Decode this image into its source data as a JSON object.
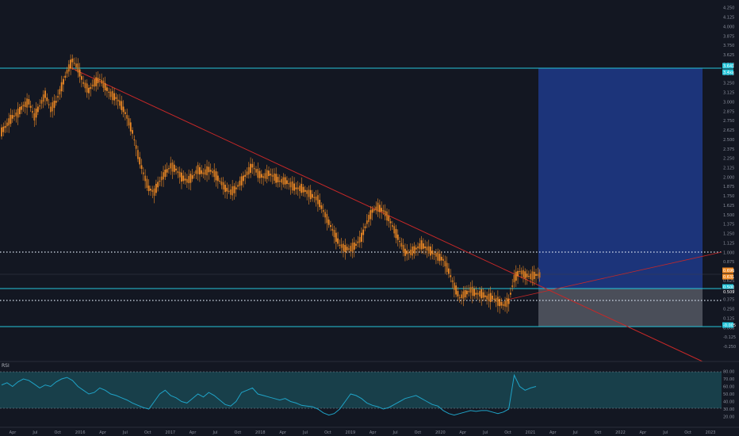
{
  "chart_data": {
    "type": "candlestick",
    "title": "",
    "xlabel": "",
    "ylabel": "",
    "ylim": [
      -0.25,
      4.3
    ],
    "grid": false,
    "background": "#131722",
    "colors": {
      "candle_up": "#f08a24",
      "candle_down": "#f08a24",
      "horizontal_line": "#26c6da",
      "dotted_level": "#d8e2f0",
      "trend_line": "#c62828",
      "long_target_zone": "#1e3a8a",
      "long_stop_zone": "#787b86",
      "rsi_line": "#1fa3c7",
      "rsi_band": "#1a4a55"
    },
    "price_axis_ticks": [
      "4.250",
      "4.125",
      "4.000",
      "3.875",
      "3.750",
      "3.625",
      "3.500",
      "3.375",
      "3.250",
      "3.125",
      "3.000",
      "2.875",
      "2.750",
      "2.625",
      "2.500",
      "2.375",
      "2.250",
      "2.125",
      "2.000",
      "1.875",
      "1.750",
      "1.625",
      "1.500",
      "1.375",
      "1.250",
      "1.125",
      "1.000",
      "0.875",
      "0.750",
      "0.625",
      "0.500",
      "0.375",
      "0.250",
      "0.125",
      "0.000",
      "-0.125",
      "-0.250"
    ],
    "time_axis_labels": [
      "Apr",
      "Jul",
      "Oct",
      "2016",
      "Apr",
      "Jul",
      "Oct",
      "2017",
      "Apr",
      "Jul",
      "Oct",
      "2018",
      "Apr",
      "Jul",
      "Oct",
      "2019",
      "Apr",
      "Jul",
      "Oct",
      "2020",
      "Apr",
      "Jul",
      "Oct",
      "2021",
      "Apr",
      "Jul",
      "Oct",
      "2022",
      "Apr",
      "Jul",
      "Oct",
      "2023"
    ],
    "series": [
      {
        "values": [
          2.6,
          2.7,
          2.8,
          2.85,
          2.95,
          3.0,
          2.8,
          2.95,
          3.1,
          2.9,
          3.0,
          3.2,
          3.4,
          3.55,
          3.45,
          3.25,
          3.15,
          3.25,
          3.3,
          3.2,
          3.1,
          3.05,
          2.95,
          2.8,
          2.6,
          2.3,
          2.05,
          1.85,
          1.8,
          1.95,
          2.05,
          2.15,
          2.1,
          2.0,
          1.95,
          2.0,
          2.1,
          2.05,
          2.1,
          2.05,
          1.95,
          1.85,
          1.8,
          1.85,
          1.95,
          2.05,
          2.15,
          2.05,
          2.0,
          2.05,
          2.0,
          1.95,
          1.95,
          1.9,
          1.85,
          1.85,
          1.8,
          1.75,
          1.7,
          1.55,
          1.4,
          1.25,
          1.1,
          1.05,
          1.05,
          1.1,
          1.2,
          1.4,
          1.55,
          1.6,
          1.55,
          1.45,
          1.3,
          1.15,
          1.0,
          1.0,
          1.05,
          1.1,
          1.05,
          1.0,
          0.95,
          0.9,
          0.75,
          0.55,
          0.4,
          0.45,
          0.5,
          0.45,
          0.45,
          0.4,
          0.4,
          0.35,
          0.3,
          0.35,
          0.65,
          0.75,
          0.7,
          0.68,
          0.7
        ]
      }
    ],
    "price_badges": [
      {
        "label": "3.641",
        "color": "#26c6da"
      },
      {
        "label": "3.4xx",
        "color": "#26c6da"
      },
      {
        "label": "0.696",
        "color": "#f08a24"
      },
      {
        "label": "0.631",
        "color": "#f08a24"
      },
      {
        "label": "0.500",
        "color": "#26c6da"
      },
      {
        "label": "0.509",
        "color": "#131722"
      },
      {
        "label": "-0.005",
        "color": "#26c6da"
      }
    ],
    "levels": {
      "cyan_lines": [
        3.55,
        0.5,
        0.0
      ],
      "dotted_lines": [
        0.98,
        0.37
      ]
    },
    "long_position": {
      "entry": 0.5,
      "target": 3.55,
      "stop": 0.0
    },
    "rsi": {
      "label": "RSI",
      "ticks": [
        "80.00",
        "70.00",
        "60.00",
        "50.00",
        "40.00",
        "30.00",
        "20.00"
      ],
      "upper_band": 70,
      "lower_band": 30,
      "values": [
        62,
        65,
        60,
        66,
        70,
        68,
        63,
        58,
        62,
        60,
        66,
        70,
        72,
        68,
        60,
        55,
        50,
        52,
        58,
        55,
        50,
        48,
        45,
        42,
        38,
        35,
        32,
        30,
        40,
        50,
        55,
        48,
        45,
        40,
        38,
        44,
        50,
        46,
        52,
        48,
        42,
        36,
        34,
        40,
        52,
        55,
        58,
        50,
        48,
        46,
        44,
        42,
        44,
        40,
        38,
        35,
        34,
        33,
        30,
        25,
        22,
        24,
        30,
        40,
        50,
        48,
        44,
        38,
        35,
        33,
        30,
        32,
        36,
        40,
        44,
        46,
        48,
        44,
        40,
        36,
        34,
        28,
        24,
        22,
        24,
        26,
        28,
        27,
        28,
        28,
        26,
        24,
        26,
        30,
        75,
        60,
        55,
        58,
        60
      ]
    }
  }
}
